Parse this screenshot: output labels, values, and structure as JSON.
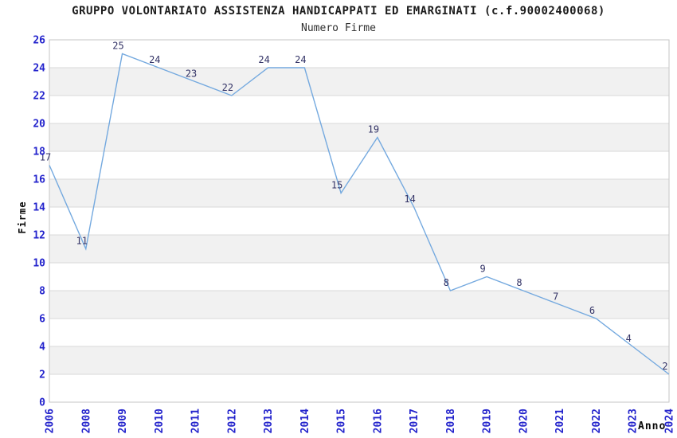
{
  "chart_data": {
    "type": "line",
    "title": "GRUPPO VOLONTARIATO ASSISTENZA HANDICAPPATI ED EMARGINATI (c.f.90002400068)",
    "subtitle": "Numero Firme",
    "xlabel": "Anno",
    "ylabel": "Firme",
    "categories": [
      "2006",
      "2008",
      "2009",
      "2010",
      "2011",
      "2012",
      "2013",
      "2014",
      "2015",
      "2016",
      "2017",
      "2018",
      "2019",
      "2020",
      "2021",
      "2022",
      "2023",
      "2024"
    ],
    "values": [
      17,
      11,
      25,
      24,
      23,
      22,
      24,
      24,
      15,
      19,
      14,
      8,
      9,
      8,
      7,
      6,
      4,
      2
    ],
    "ylim": [
      0,
      26
    ],
    "ytick_step": 2,
    "grid": "on",
    "legend_position": "none",
    "marker": "none",
    "colors": {
      "line": "#74A9DF",
      "band": "#F1F1F1",
      "grid": "#D9D9D9",
      "border": "#C6C6C6",
      "tick_label": "#2323CC",
      "value_label": "#333366",
      "title": "#1C1C1C",
      "axis_title": "#0A0A0A",
      "background": "#FFFFFF"
    }
  }
}
